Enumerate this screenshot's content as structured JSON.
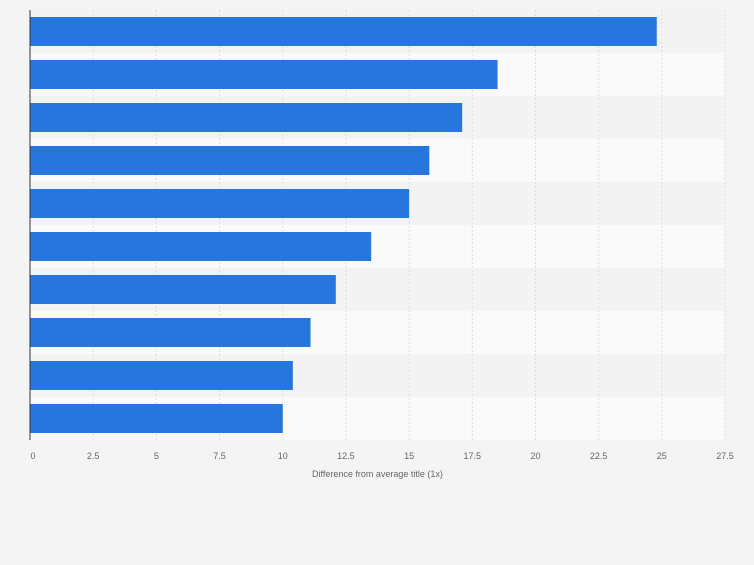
{
  "chart_data": {
    "type": "bar",
    "orientation": "horizontal",
    "title": "",
    "xlabel": "Difference from average title (1x)",
    "ylabel": "",
    "xlim": [
      0,
      27.5
    ],
    "xticks": [
      0,
      2.5,
      5,
      7.5,
      10,
      12.5,
      15,
      17.5,
      20,
      22.5,
      25,
      27.5
    ],
    "xtick_labels": [
      "0",
      "2.5",
      "5",
      "7.5",
      "10",
      "12.5",
      "15",
      "17.5",
      "20",
      "22.5",
      "25",
      "27.5"
    ],
    "categories": [
      "",
      "",
      "",
      "",
      "",
      "",
      "",
      "",
      "",
      ""
    ],
    "values": [
      24.8,
      18.5,
      17.1,
      15.8,
      15.0,
      13.5,
      12.1,
      11.1,
      10.4,
      10.0
    ],
    "grid": true,
    "legend": "none",
    "colors": {
      "bar": "#2776dd",
      "page_background": "#f4f4f4",
      "band_light": "#fafafa",
      "band_dark": "#f3f3f3",
      "gridline": "#dddddd",
      "axis_line": "#333333",
      "tick_text": "#666666"
    }
  }
}
